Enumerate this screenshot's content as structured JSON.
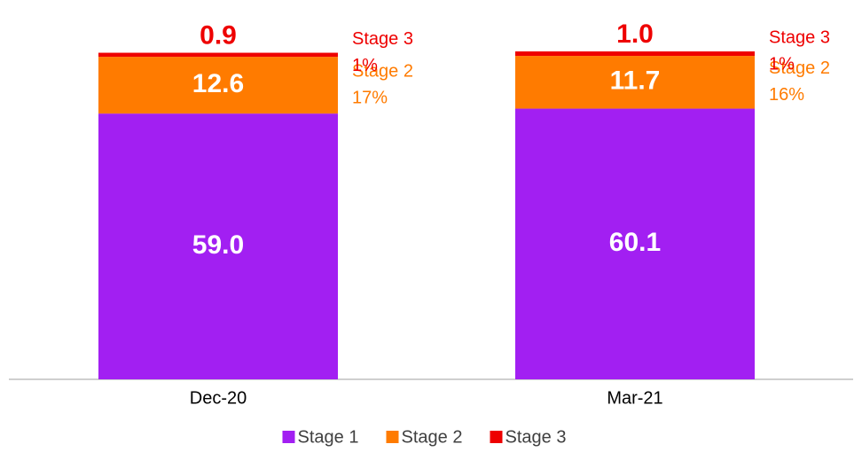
{
  "chart_data": {
    "type": "stacked_bar",
    "categories": [
      "Dec-20",
      "Mar-21"
    ],
    "series": [
      {
        "name": "Stage 1",
        "color": "#a21ff2",
        "values": [
          59.0,
          60.1
        ],
        "value_labels": [
          "59.0",
          "60.1"
        ]
      },
      {
        "name": "Stage 2",
        "color": "#ff7b00",
        "values": [
          12.6,
          11.7
        ],
        "value_labels": [
          "12.6",
          "11.7"
        ],
        "share_labels": [
          "17%",
          "16%"
        ]
      },
      {
        "name": "Stage 3",
        "color": "#ee0000",
        "values": [
          0.9,
          1.0
        ],
        "value_labels": [
          "0.9",
          "1.0"
        ],
        "share_labels": [
          "1%",
          "1%"
        ]
      }
    ],
    "legend": "bottom"
  }
}
